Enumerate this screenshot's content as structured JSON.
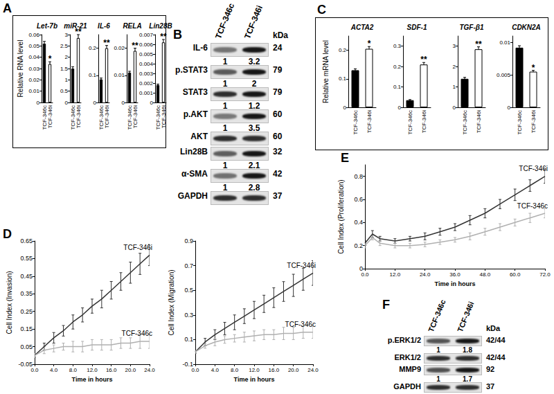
{
  "panel_labels": [
    "A",
    "B",
    "C",
    "D",
    "E",
    "F"
  ],
  "chart_data": [
    {
      "panel": "A",
      "type": "bar",
      "title": "Let-7b",
      "ylabel": "Relative RNA level",
      "categories": [
        "TCF-346c",
        "TCF-346i"
      ],
      "values": [
        0.052,
        0.034
      ],
      "errors": [
        0.002,
        0.002
      ],
      "colors": [
        "#000000",
        "#ffffff"
      ],
      "annotations": [
        {
          "category": "TCF-346i",
          "text": "*"
        }
      ],
      "ylim": [
        0,
        0.06
      ],
      "yticks": [
        0,
        0.01,
        0.02,
        0.03,
        0.04,
        0.05,
        0.06
      ],
      "grid": false
    },
    {
      "panel": "A",
      "type": "bar",
      "title": "miR-21",
      "categories": [
        "TCF-346c",
        "TCF-346i"
      ],
      "values": [
        1.5,
        2.85
      ],
      "errors": [
        0.08,
        0.15
      ],
      "colors": [
        "#000000",
        "#ffffff"
      ],
      "annotations": [
        {
          "category": "TCF-346i",
          "text": "**"
        }
      ],
      "ylim": [
        0,
        3
      ],
      "yticks": [
        0,
        0.5,
        1,
        1.5,
        2,
        2.5,
        3
      ],
      "grid": false
    },
    {
      "panel": "A",
      "type": "bar",
      "title": "IL-6",
      "categories": [
        "TCF-346c",
        "TCF-346i"
      ],
      "values": [
        0.085,
        0.2
      ],
      "errors": [
        0.005,
        0.01
      ],
      "colors": [
        "#000000",
        "#ffffff"
      ],
      "annotations": [
        {
          "category": "TCF-346i",
          "text": "**"
        }
      ],
      "ylim": [
        0,
        0.25
      ],
      "yticks": [
        0,
        0.1,
        0.2
      ],
      "grid": false
    },
    {
      "panel": "A",
      "type": "bar",
      "title": "RELA",
      "categories": [
        "TCF-346c",
        "TCF-346i"
      ],
      "values": [
        0.011,
        0.019
      ],
      "errors": [
        0.0005,
        0.001
      ],
      "colors": [
        "#000000",
        "#ffffff"
      ],
      "annotations": [
        {
          "category": "TCF-346i",
          "text": "**"
        }
      ],
      "ylim": [
        0,
        0.025
      ],
      "yticks": [
        0,
        0.01,
        0.02
      ],
      "grid": false
    },
    {
      "panel": "A",
      "type": "bar",
      "title": "Lin28B",
      "categories": [
        "TCF-346c",
        "TCF-346i"
      ],
      "values": [
        0.0018,
        0.0062
      ],
      "errors": [
        0.0001,
        0.0003
      ],
      "colors": [
        "#000000",
        "#ffffff"
      ],
      "annotations": [
        {
          "category": "TCF-346i",
          "text": "**"
        }
      ],
      "ylim": [
        0,
        0.007
      ],
      "yticks": [
        0,
        0.001,
        0.002,
        0.003,
        0.004,
        0.005,
        0.006,
        0.007
      ],
      "grid": false
    },
    {
      "panel": "C",
      "type": "bar",
      "title": "ACTA2",
      "ylabel": "Relative mRNA level",
      "categories": [
        "TCF-346c",
        "TCF-346i"
      ],
      "values": [
        0.13,
        0.205
      ],
      "errors": [
        0.005,
        0.008
      ],
      "colors": [
        "#000000",
        "#ffffff"
      ],
      "annotations": [
        {
          "category": "TCF-346i",
          "text": "*"
        }
      ],
      "ylim": [
        0,
        0.25
      ],
      "yticks": [
        0,
        0.1,
        0.2
      ],
      "grid": false
    },
    {
      "panel": "C",
      "type": "bar",
      "title": "SDF-1",
      "categories": [
        "TCF-346c",
        "TCF-346i"
      ],
      "values": [
        0.035,
        0.21
      ],
      "errors": [
        0.003,
        0.01
      ],
      "colors": [
        "#000000",
        "#ffffff"
      ],
      "annotations": [
        {
          "category": "TCF-346i",
          "text": "**"
        }
      ],
      "ylim": [
        0,
        0.35
      ],
      "yticks": [
        0,
        0.1,
        0.2,
        0.3
      ],
      "grid": false
    },
    {
      "panel": "C",
      "type": "bar",
      "title": "TGF-β1",
      "categories": [
        "TCF-346c",
        "TCF-346i"
      ],
      "values": [
        1.4,
        2.85
      ],
      "errors": [
        0.07,
        0.12
      ],
      "colors": [
        "#000000",
        "#ffffff"
      ],
      "annotations": [
        {
          "category": "TCF-346i",
          "text": "**"
        }
      ],
      "ylim": [
        0,
        3.5
      ],
      "yticks": [
        0,
        1,
        2,
        3
      ],
      "grid": false
    },
    {
      "panel": "C",
      "type": "bar",
      "title": "CDKN2A",
      "categories": [
        "TCF-346c",
        "TCF-346i"
      ],
      "values": [
        0.0092,
        0.0055
      ],
      "errors": [
        0.0003,
        0.0002
      ],
      "colors": [
        "#000000",
        "#ffffff"
      ],
      "annotations": [
        {
          "category": "TCF-346i",
          "text": "*"
        }
      ],
      "ylim": [
        0,
        0.011
      ],
      "yticks": [
        0,
        0.005,
        0.01
      ],
      "grid": false
    },
    {
      "panel": "D",
      "type": "line",
      "ylabel": "Cell Index (Invasion)",
      "xlabel": "Time in hours",
      "x": [
        0,
        2,
        4,
        6,
        8,
        10,
        12,
        14,
        16,
        18,
        20,
        22,
        24
      ],
      "series": [
        {
          "name": "TCF-346i",
          "color": "#333333",
          "values": [
            0.0,
            0.05,
            0.1,
            0.14,
            0.19,
            0.23,
            0.28,
            0.32,
            0.37,
            0.42,
            0.47,
            0.52,
            0.57
          ],
          "errors": [
            0.01,
            0.02,
            0.03,
            0.03,
            0.04,
            0.04,
            0.04,
            0.05,
            0.05,
            0.05,
            0.06,
            0.06,
            0.06
          ]
        },
        {
          "name": "TCF-346c",
          "color": "#b0b0b0",
          "values": [
            0.0,
            0.03,
            0.04,
            0.05,
            0.05,
            0.05,
            0.06,
            0.06,
            0.06,
            0.07,
            0.07,
            0.08,
            0.08
          ],
          "errors": [
            0.01,
            0.02,
            0.02,
            0.02,
            0.03,
            0.03,
            0.03,
            0.03,
            0.03,
            0.03,
            0.03,
            0.04,
            0.04
          ]
        }
      ],
      "xlim": [
        0,
        24
      ],
      "xticks": [
        {
          "value": 0,
          "label": "0.0"
        },
        {
          "value": 4,
          "label": "4.0"
        },
        {
          "value": 8,
          "label": "8.0"
        },
        {
          "value": 12,
          "label": "12.0"
        },
        {
          "value": 16,
          "label": "16.0"
        },
        {
          "value": 20,
          "label": "20.0"
        },
        {
          "value": 24,
          "label": "24.0"
        }
      ],
      "ylim": [
        -0.05,
        0.65
      ],
      "yticks": [
        -0.05,
        0.05,
        0.15,
        0.25,
        0.35,
        0.45,
        0.55,
        0.65
      ],
      "grid": false
    },
    {
      "panel": "D",
      "type": "line",
      "ylabel": "Cell Index (Migration)",
      "xlabel": "Time in hours",
      "x": [
        0,
        2,
        4,
        6,
        8,
        10,
        12,
        14,
        16,
        18,
        20,
        22,
        24
      ],
      "series": [
        {
          "name": "TCF-346i",
          "color": "#333333",
          "values": [
            0.0,
            0.08,
            0.14,
            0.19,
            0.24,
            0.29,
            0.34,
            0.39,
            0.44,
            0.49,
            0.54,
            0.59,
            0.64
          ],
          "errors": [
            0.01,
            0.03,
            0.04,
            0.05,
            0.06,
            0.06,
            0.07,
            0.07,
            0.08,
            0.08,
            0.09,
            0.09,
            0.1
          ]
        },
        {
          "name": "TCF-346c",
          "color": "#b0b0b0",
          "values": [
            0.0,
            0.05,
            0.08,
            0.1,
            0.11,
            0.12,
            0.13,
            0.14,
            0.14,
            0.15,
            0.15,
            0.16,
            0.16
          ],
          "errors": [
            0.01,
            0.02,
            0.03,
            0.03,
            0.03,
            0.04,
            0.04,
            0.04,
            0.04,
            0.05,
            0.05,
            0.05,
            0.05
          ]
        }
      ],
      "xlim": [
        0,
        24
      ],
      "xticks": [
        {
          "value": 0,
          "label": "0.0"
        },
        {
          "value": 4,
          "label": "4.0"
        },
        {
          "value": 8,
          "label": "8.0"
        },
        {
          "value": 12,
          "label": "12.0"
        },
        {
          "value": 16,
          "label": "16.0"
        },
        {
          "value": 20,
          "label": "20.0"
        },
        {
          "value": 24,
          "label": "24.0"
        }
      ],
      "ylim": [
        -0.1,
        0.9
      ],
      "yticks": [
        -0.1,
        0.1,
        0.3,
        0.5,
        0.7,
        0.9
      ],
      "grid": false
    },
    {
      "panel": "E",
      "type": "line",
      "ylabel": "Cell Index (Proliferation)",
      "xlabel": "Time in hours",
      "x": [
        0,
        3,
        6,
        12,
        18,
        24,
        30,
        36,
        42,
        48,
        54,
        60,
        66,
        72
      ],
      "series": [
        {
          "name": "TCF-346i",
          "color": "#333333",
          "values": [
            0.22,
            0.3,
            0.26,
            0.24,
            0.26,
            0.28,
            0.32,
            0.36,
            0.42,
            0.48,
            0.56,
            0.64,
            0.72,
            0.8
          ],
          "errors": [
            0.02,
            0.03,
            0.02,
            0.02,
            0.02,
            0.03,
            0.03,
            0.03,
            0.04,
            0.04,
            0.04,
            0.05,
            0.05,
            0.06
          ]
        },
        {
          "name": "TCF-346c",
          "color": "#b0b0b0",
          "values": [
            0.2,
            0.27,
            0.22,
            0.2,
            0.2,
            0.21,
            0.23,
            0.25,
            0.28,
            0.32,
            0.36,
            0.4,
            0.44,
            0.48
          ],
          "errors": [
            0.02,
            0.02,
            0.02,
            0.02,
            0.02,
            0.02,
            0.02,
            0.02,
            0.03,
            0.03,
            0.03,
            0.03,
            0.04,
            0.04
          ]
        }
      ],
      "xlim": [
        0,
        72
      ],
      "xticks": [
        {
          "value": 0,
          "label": "0.0"
        },
        {
          "value": 12,
          "label": "12.0"
        },
        {
          "value": 24,
          "label": "24.0"
        },
        {
          "value": 36,
          "label": "36.0"
        },
        {
          "value": 48,
          "label": "48.0"
        },
        {
          "value": 60,
          "label": "60.0"
        },
        {
          "value": 72,
          "label": "72.0"
        }
      ],
      "ylim": [
        0,
        0.9
      ],
      "yticks": [
        0,
        0.2,
        0.4,
        0.6,
        0.8
      ],
      "grid": false
    }
  ],
  "blots": [
    {
      "panel": "B",
      "lanes": [
        "TCF-346c",
        "TCF-346i"
      ],
      "kda_label": "kDa",
      "rows": [
        {
          "label": "IL-6",
          "kda": "24",
          "quant": [
            1,
            3.2
          ]
        },
        {
          "label": "p.STAT3",
          "kda": "79",
          "quant": [
            1,
            2
          ]
        },
        {
          "label": "STAT3",
          "kda": "79",
          "quant": [
            1,
            1.2
          ]
        },
        {
          "label": "p.AKT",
          "kda": "60",
          "quant": [
            1,
            3.5
          ]
        },
        {
          "label": "AKT",
          "kda": "60"
        },
        {
          "label": "Lin28B",
          "kda": "32",
          "quant": [
            1,
            2.1
          ]
        },
        {
          "label": "α-SMA",
          "kda": "42",
          "quant": [
            1,
            2.8
          ]
        },
        {
          "label": "GAPDH",
          "kda": "37"
        }
      ]
    },
    {
      "panel": "F",
      "lanes": [
        "TCF-346c",
        "TCF-346i"
      ],
      "kda_label": "kDa",
      "rows": [
        {
          "label": "p.ERK1/2",
          "kda": "42/44",
          "quant": [
            1,
            1.8
          ]
        },
        {
          "label": "ERK1/2",
          "kda": "42/44"
        },
        {
          "label": "MMP9",
          "kda": "92",
          "quant": [
            1,
            1.7
          ]
        },
        {
          "label": "GAPDH",
          "kda": "37"
        }
      ]
    }
  ]
}
